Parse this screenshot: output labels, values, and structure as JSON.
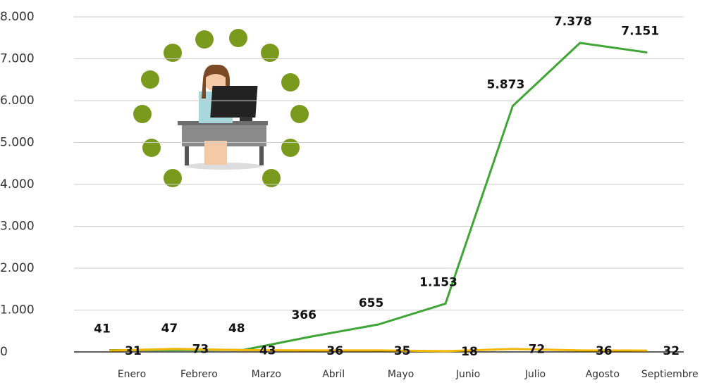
{
  "chart_data": {
    "type": "line",
    "categories": [
      "Enero",
      "Febrero",
      "Marzo",
      "Abril",
      "Mayo",
      "Junio",
      "Julio",
      "Agosto",
      "Septiembre"
    ],
    "series": [
      {
        "color": "#3fa535",
        "values": [
          41,
          47,
          48,
          366,
          655,
          1153,
          5873,
          7378,
          7151
        ],
        "value_labels": [
          "41",
          "47",
          "48",
          "366",
          "655",
          "1.153",
          "5.873",
          "7.378",
          "7.151"
        ]
      },
      {
        "color": "#f2b705",
        "values": [
          31,
          73,
          43,
          36,
          35,
          18,
          72,
          36,
          32
        ]
      }
    ],
    "ylim": [
      0,
      8000
    ],
    "yticks": [
      0,
      {
        "value": 1000,
        "label": "1.000"
      },
      {
        "value": 2000,
        "label": "2.000"
      },
      {
        "value": 3000,
        "label": "3.000"
      },
      {
        "value": 4000,
        "label": "4.000"
      },
      {
        "value": 5000,
        "label": "5.000"
      },
      {
        "value": 6000,
        "label": "6.000"
      },
      {
        "value": 7000,
        "label": "7.000"
      },
      {
        "value": 8000,
        "label": "8.000"
      }
    ],
    "grid": true
  }
}
